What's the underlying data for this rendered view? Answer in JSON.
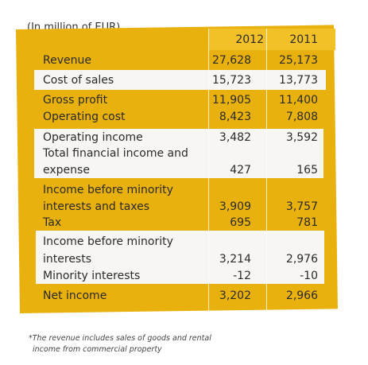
{
  "unit_label": "(In million of EUR)",
  "columns": [
    "2012",
    "2011"
  ],
  "rows": [
    {
      "label": "Revenue",
      "v2012": "27,628",
      "v2011": "25,173"
    },
    {
      "label": "Cost of sales",
      "v2012": "15,723",
      "v2011": "13,773"
    },
    {
      "label": "Gross profit",
      "v2012": "11,905",
      "v2011": "11,400"
    },
    {
      "label": "Operating cost",
      "v2012": "8,423",
      "v2011": "7,808"
    },
    {
      "label": "Operating income",
      "v2012": "3,482",
      "v2011": "3,592"
    },
    {
      "label_line1": "Total financial income and",
      "label_line2": "expense",
      "v2012": "427",
      "v2011": "165"
    },
    {
      "label_line1": "Income before minority",
      "label_line2": "interests and taxes",
      "v2012": "3,909",
      "v2011": "3,757"
    },
    {
      "label": "Tax",
      "v2012": "695",
      "v2011": "781"
    },
    {
      "label_line1": "Income before minority",
      "label_line2": "interests",
      "v2012": "3,214",
      "v2011": "2,976"
    },
    {
      "label": "Minority interests",
      "v2012": "-12",
      "v2011": "-10"
    },
    {
      "label": "Net income",
      "v2012": "3,202",
      "v2011": "2,966"
    }
  ],
  "footnote_line1": "*The revenue includes sales of goods and rental",
  "footnote_line2": "income from commercial property"
}
